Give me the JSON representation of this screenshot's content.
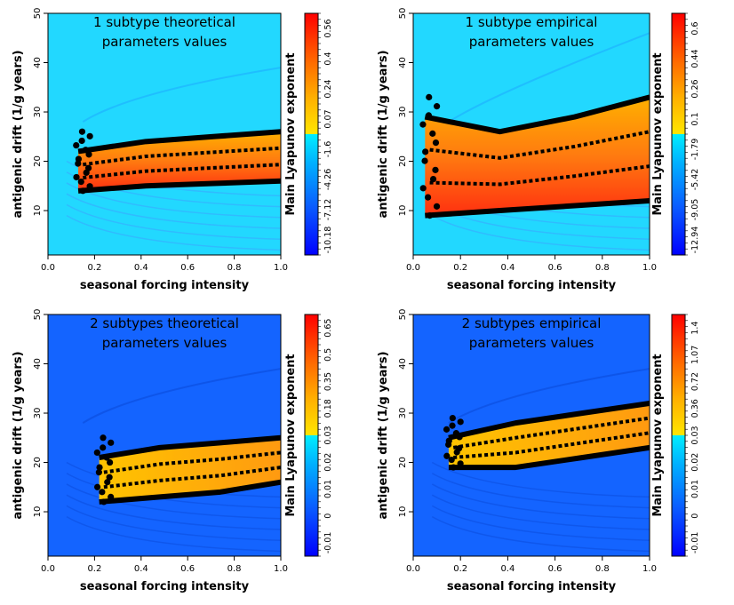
{
  "figure": {
    "colors": {
      "blue_low": "#1010ff",
      "cyan": "#00e5ff",
      "yellow": "#ffe000",
      "orange": "#ff9020",
      "red": "#ff1a00",
      "contour": "#000000"
    }
  },
  "chart_data": [
    {
      "type": "heatmap",
      "title": "1 subtype theoretical parameters values",
      "title_lines": [
        "1 subtype theoretical",
        "parameters values"
      ],
      "xlabel": "seasonal forcing intensity",
      "ylabel": "antigenic drift (1/g years)",
      "xlim": [
        0,
        1
      ],
      "ylim": [
        1,
        50
      ],
      "x_ticks": [
        "0.0",
        "0.2",
        "0.4",
        "0.6",
        "0.8",
        "1.0"
      ],
      "y_ticks": [
        "10",
        "20",
        "30",
        "40",
        "50"
      ],
      "colorbar_label": "Main Lyapunov exponent",
      "colorbar_ticks": [
        "-10.18",
        "-7.12",
        "-4.26",
        "-1.6",
        "0.07",
        "0.24",
        "0.4",
        "0.56"
      ],
      "background_color": "#22d8ff",
      "chaotic_regions": [
        {
          "x_start": 0.13,
          "x_end": 1.0,
          "y_low": [
            14,
            15,
            15.5,
            16
          ],
          "y_high": [
            22,
            24,
            25,
            26
          ]
        }
      ]
    },
    {
      "type": "heatmap",
      "title": "1 subtype empirical parameters values",
      "title_lines": [
        "1 subtype empirical",
        "parameters values"
      ],
      "xlabel": "seasonal forcing intensity",
      "ylabel": "antigenic drift (1/g years)",
      "xlim": [
        0,
        1
      ],
      "ylim": [
        1,
        50
      ],
      "x_ticks": [
        "0.0",
        "0.2",
        "0.4",
        "0.6",
        "0.8",
        "1.0"
      ],
      "y_ticks": [
        "10",
        "20",
        "30",
        "40",
        "50"
      ],
      "colorbar_label": "Main Lyapunov exponent",
      "colorbar_ticks": [
        "-12.94",
        "-9.05",
        "-5.42",
        "-1.79",
        "0.1",
        "0.26",
        "0.44",
        "0.6"
      ],
      "background_color": "#22d8ff",
      "chaotic_regions": [
        {
          "x_start": 0.05,
          "x_end": 1.0,
          "y_low": [
            9,
            10,
            11,
            12
          ],
          "y_high": [
            29,
            26,
            29,
            33
          ]
        }
      ]
    },
    {
      "type": "heatmap",
      "title": "2 subtypes theoretical parameters values",
      "title_lines": [
        "2 subtypes theoretical",
        "parameters values"
      ],
      "xlabel": "seasonal forcing intensity",
      "ylabel": "antigenic drift (1/g years)",
      "xlim": [
        0,
        1
      ],
      "ylim": [
        1,
        50
      ],
      "x_ticks": [
        "0.0",
        "0.2",
        "0.4",
        "0.6",
        "0.8",
        "1.0"
      ],
      "y_ticks": [
        "10",
        "20",
        "30",
        "40",
        "50"
      ],
      "colorbar_label": "Main Lyapunov exponent",
      "colorbar_ticks": [
        "-0.01",
        "0",
        "0.01",
        "0.02",
        "0.03",
        "0.18",
        "0.35",
        "0.5",
        "0.65"
      ],
      "background_color": "#1464ff",
      "chaotic_regions": [
        {
          "x_start": 0.22,
          "x_end": 1.0,
          "y_low": [
            12,
            13,
            14,
            16
          ],
          "y_high": [
            21,
            23,
            24,
            25
          ]
        }
      ]
    },
    {
      "type": "heatmap",
      "title": "2 subtypes empirical parameters values",
      "title_lines": [
        "2 subtypes empirical",
        "parameters values"
      ],
      "xlabel": "seasonal forcing intensity",
      "ylabel": "antigenic drift (1/g years)",
      "xlim": [
        0,
        1
      ],
      "ylim": [
        1,
        50
      ],
      "x_ticks": [
        "0.0",
        "0.2",
        "0.4",
        "0.6",
        "0.8",
        "1.0"
      ],
      "y_ticks": [
        "10",
        "20",
        "30",
        "40",
        "50"
      ],
      "colorbar_label": "Main Lyapunov exponent",
      "colorbar_ticks": [
        "-0.01",
        "0",
        "0.01",
        "0.02",
        "0.03",
        "0.36",
        "0.72",
        "1.07",
        "1.4"
      ],
      "background_color": "#1464ff",
      "chaotic_regions": [
        {
          "x_start": 0.15,
          "x_end": 1.0,
          "y_low": [
            19,
            19,
            21,
            23
          ],
          "y_high": [
            25,
            28,
            30,
            32
          ]
        }
      ]
    }
  ]
}
